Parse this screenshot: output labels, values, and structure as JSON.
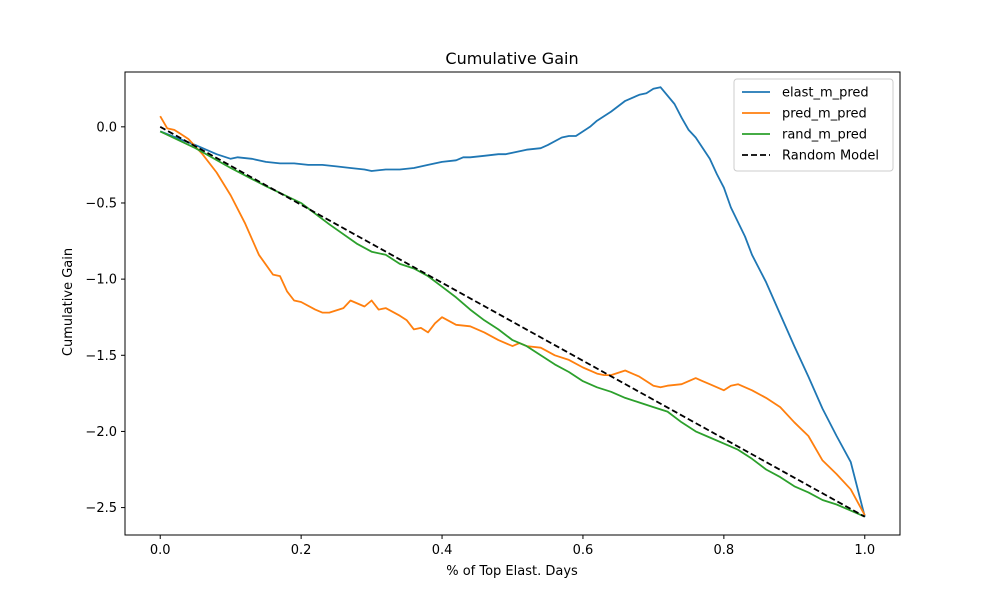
{
  "chart_data": {
    "type": "line",
    "title": "Cumulative Gain",
    "xlabel": "% of Top Elast. Days",
    "ylabel": "Cumulative Gain",
    "xlim": [
      -0.05,
      1.05
    ],
    "ylim": [
      -2.68,
      0.36
    ],
    "xticks": [
      0.0,
      0.2,
      0.4,
      0.6,
      0.8,
      1.0
    ],
    "xtick_labels": [
      "0.0",
      "0.2",
      "0.4",
      "0.6",
      "0.8",
      "1.0"
    ],
    "yticks": [
      0.0,
      -0.5,
      -1.0,
      -1.5,
      -2.0,
      -2.5
    ],
    "ytick_labels": [
      "0.0",
      "−0.5",
      "−1.0",
      "−1.5",
      "−2.0",
      "−2.5"
    ],
    "grid": false,
    "legend_position": "top-right",
    "series": [
      {
        "name": "elast_m_pred",
        "color": "#1f77b4",
        "dash": "solid",
        "x": [
          0.0,
          0.05,
          0.08,
          0.1,
          0.11,
          0.13,
          0.15,
          0.17,
          0.19,
          0.21,
          0.23,
          0.25,
          0.27,
          0.29,
          0.3,
          0.32,
          0.34,
          0.36,
          0.38,
          0.4,
          0.42,
          0.43,
          0.44,
          0.46,
          0.48,
          0.49,
          0.5,
          0.52,
          0.54,
          0.55,
          0.57,
          0.58,
          0.59,
          0.6,
          0.61,
          0.62,
          0.64,
          0.66,
          0.68,
          0.69,
          0.7,
          0.71,
          0.73,
          0.74,
          0.75,
          0.76,
          0.78,
          0.79,
          0.8,
          0.81,
          0.83,
          0.84,
          0.86,
          0.88,
          0.9,
          0.92,
          0.94,
          0.96,
          0.98,
          1.0
        ],
        "y": [
          -0.03,
          -0.12,
          -0.18,
          -0.21,
          -0.2,
          -0.21,
          -0.23,
          -0.24,
          -0.24,
          -0.25,
          -0.25,
          -0.26,
          -0.27,
          -0.28,
          -0.29,
          -0.28,
          -0.28,
          -0.27,
          -0.25,
          -0.23,
          -0.22,
          -0.2,
          -0.2,
          -0.19,
          -0.18,
          -0.18,
          -0.17,
          -0.15,
          -0.14,
          -0.12,
          -0.07,
          -0.06,
          -0.06,
          -0.03,
          0.0,
          0.04,
          0.1,
          0.17,
          0.21,
          0.22,
          0.25,
          0.26,
          0.15,
          0.06,
          -0.02,
          -0.07,
          -0.21,
          -0.31,
          -0.4,
          -0.53,
          -0.72,
          -0.84,
          -1.02,
          -1.23,
          -1.44,
          -1.64,
          -1.85,
          -2.03,
          -2.2,
          -2.56
        ]
      },
      {
        "name": "pred_m_pred",
        "color": "#ff7f0e",
        "dash": "solid",
        "x": [
          0.0,
          0.01,
          0.02,
          0.03,
          0.04,
          0.06,
          0.08,
          0.1,
          0.12,
          0.14,
          0.16,
          0.17,
          0.18,
          0.19,
          0.2,
          0.22,
          0.23,
          0.24,
          0.26,
          0.27,
          0.28,
          0.29,
          0.3,
          0.31,
          0.32,
          0.34,
          0.35,
          0.36,
          0.37,
          0.38,
          0.39,
          0.4,
          0.42,
          0.44,
          0.46,
          0.48,
          0.5,
          0.51,
          0.52,
          0.54,
          0.56,
          0.58,
          0.6,
          0.62,
          0.63,
          0.64,
          0.66,
          0.68,
          0.7,
          0.71,
          0.72,
          0.74,
          0.76,
          0.77,
          0.78,
          0.8,
          0.81,
          0.82,
          0.84,
          0.86,
          0.88,
          0.9,
          0.92,
          0.94,
          0.96,
          0.98,
          1.0
        ],
        "y": [
          0.07,
          -0.01,
          -0.02,
          -0.05,
          -0.08,
          -0.18,
          -0.3,
          -0.45,
          -0.63,
          -0.84,
          -0.97,
          -0.98,
          -1.08,
          -1.14,
          -1.15,
          -1.2,
          -1.22,
          -1.22,
          -1.19,
          -1.14,
          -1.16,
          -1.18,
          -1.14,
          -1.2,
          -1.19,
          -1.24,
          -1.27,
          -1.33,
          -1.32,
          -1.35,
          -1.29,
          -1.25,
          -1.3,
          -1.31,
          -1.35,
          -1.4,
          -1.44,
          -1.42,
          -1.44,
          -1.45,
          -1.5,
          -1.53,
          -1.58,
          -1.62,
          -1.63,
          -1.63,
          -1.6,
          -1.64,
          -1.7,
          -1.71,
          -1.7,
          -1.69,
          -1.65,
          -1.67,
          -1.69,
          -1.73,
          -1.7,
          -1.69,
          -1.73,
          -1.78,
          -1.84,
          -1.94,
          -2.03,
          -2.19,
          -2.28,
          -2.38,
          -2.55
        ]
      },
      {
        "name": "rand_m_pred",
        "color": "#2ca02c",
        "dash": "solid",
        "x": [
          0.0,
          0.05,
          0.1,
          0.15,
          0.2,
          0.24,
          0.28,
          0.3,
          0.32,
          0.34,
          0.36,
          0.38,
          0.4,
          0.42,
          0.44,
          0.46,
          0.48,
          0.5,
          0.52,
          0.54,
          0.56,
          0.58,
          0.6,
          0.62,
          0.64,
          0.66,
          0.68,
          0.7,
          0.72,
          0.74,
          0.76,
          0.78,
          0.8,
          0.82,
          0.84,
          0.86,
          0.88,
          0.9,
          0.92,
          0.94,
          0.96,
          0.98,
          1.0
        ],
        "y": [
          -0.03,
          -0.14,
          -0.27,
          -0.39,
          -0.5,
          -0.64,
          -0.77,
          -0.82,
          -0.84,
          -0.9,
          -0.93,
          -0.98,
          -1.05,
          -1.12,
          -1.2,
          -1.27,
          -1.33,
          -1.4,
          -1.44,
          -1.5,
          -1.56,
          -1.61,
          -1.67,
          -1.71,
          -1.74,
          -1.78,
          -1.81,
          -1.84,
          -1.87,
          -1.94,
          -2.0,
          -2.04,
          -2.08,
          -2.12,
          -2.18,
          -2.25,
          -2.3,
          -2.36,
          -2.4,
          -2.45,
          -2.48,
          -2.52,
          -2.56
        ]
      },
      {
        "name": "Random Model",
        "color": "#000000",
        "dash": "dashed",
        "x": [
          0.0,
          1.0
        ],
        "y": [
          0.0,
          -2.56
        ]
      }
    ]
  }
}
